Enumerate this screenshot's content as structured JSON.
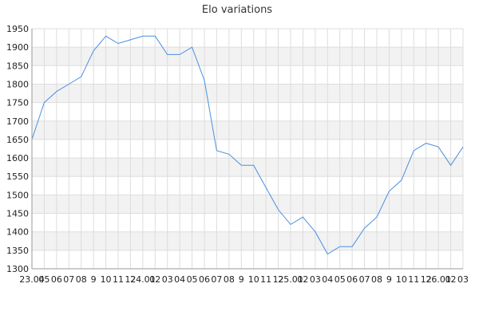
{
  "chart_data": {
    "type": "line",
    "title": "Elo variations",
    "xlabel": "",
    "ylabel": "",
    "ylim": [
      1300,
      1950
    ],
    "y_ticks": [
      1950,
      1900,
      1850,
      1800,
      1750,
      1700,
      1650,
      1600,
      1550,
      1500,
      1450,
      1400,
      1350,
      1300
    ],
    "x_tick_labels": [
      "23.04",
      "05",
      "06",
      "07",
      "08",
      "9",
      "10",
      "11",
      "12",
      "24.01",
      "02",
      "03",
      "04",
      "05",
      "06",
      "07",
      "08",
      "9",
      "10",
      "11",
      "12",
      "25.01",
      "02",
      "03",
      "04",
      "05",
      "06",
      "07",
      "08",
      "9",
      "10",
      "11",
      "12",
      "26.01",
      "02",
      "03"
    ],
    "grid": true,
    "legend": "none",
    "colors": {
      "line": "#4a8fe0",
      "band": "#f2f2f2",
      "grid": "#dddddd"
    },
    "series": [
      {
        "values": [
          1650,
          1750,
          1780,
          1800,
          1820,
          1890,
          1930,
          1910,
          1920,
          1930,
          1930,
          1880,
          1880,
          1900,
          1810,
          1620,
          1610,
          1580,
          1580,
          1520,
          1460,
          1420,
          1440,
          1400,
          1340,
          1360,
          1360,
          1410,
          1440,
          1510,
          1540,
          1620,
          1640,
          1630,
          1580,
          1630
        ]
      }
    ]
  }
}
